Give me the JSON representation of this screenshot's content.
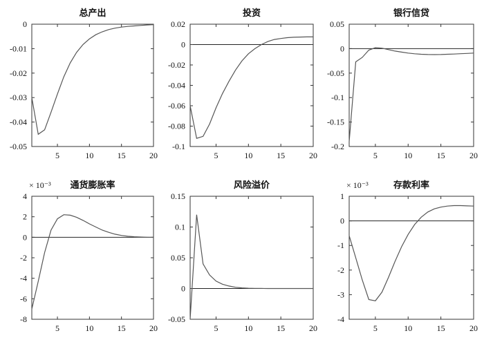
{
  "chart_data": [
    {
      "type": "line",
      "title": "总产出",
      "scale_label": "",
      "xlim": [
        1,
        20
      ],
      "ylim": [
        -0.05,
        0
      ],
      "x_ticks": [
        5,
        10,
        15,
        20
      ],
      "x_tick_labels": [
        "5",
        "10",
        "15",
        "20"
      ],
      "y_ticks": [
        -0.05,
        -0.04,
        -0.03,
        -0.02,
        -0.01,
        0
      ],
      "y_tick_labels": [
        "-0.05",
        "-0.04",
        "-0.03",
        "-0.02",
        "-0.01",
        "0"
      ],
      "zero_line": false,
      "x": [
        1,
        2,
        3,
        4,
        5,
        6,
        7,
        8,
        9,
        10,
        11,
        12,
        13,
        14,
        15,
        16,
        17,
        18,
        19,
        20
      ],
      "y": [
        -0.03,
        -0.045,
        -0.0432,
        -0.036,
        -0.0285,
        -0.0215,
        -0.0158,
        -0.0115,
        -0.0083,
        -0.006,
        -0.0043,
        -0.0031,
        -0.0022,
        -0.0016,
        -0.0012,
        -0.0009,
        -0.0007,
        -0.0005,
        -0.0003,
        -0.0002
      ]
    },
    {
      "type": "line",
      "title": "投资",
      "scale_label": "",
      "xlim": [
        1,
        20
      ],
      "ylim": [
        -0.1,
        0.02
      ],
      "x_ticks": [
        5,
        10,
        15,
        20
      ],
      "x_tick_labels": [
        "5",
        "10",
        "15",
        "20"
      ],
      "y_ticks": [
        -0.1,
        -0.08,
        -0.06,
        -0.04,
        -0.02,
        0,
        0.02
      ],
      "y_tick_labels": [
        "-0.1",
        "-0.08",
        "-0.06",
        "-0.04",
        "-0.02",
        "0",
        "0.02"
      ],
      "zero_line": true,
      "x": [
        1,
        2,
        3,
        4,
        5,
        6,
        7,
        8,
        9,
        10,
        11,
        12,
        13,
        14,
        15,
        16,
        17,
        18,
        19,
        20
      ],
      "y": [
        -0.06,
        -0.092,
        -0.09,
        -0.078,
        -0.062,
        -0.048,
        -0.036,
        -0.025,
        -0.016,
        -0.009,
        -0.004,
        0.0,
        0.003,
        0.005,
        0.006,
        0.0068,
        0.0072,
        0.0074,
        0.0075,
        0.0075
      ]
    },
    {
      "type": "line",
      "title": "银行信贷",
      "scale_label": "",
      "xlim": [
        1,
        20
      ],
      "ylim": [
        -0.2,
        0.05
      ],
      "x_ticks": [
        5,
        10,
        15,
        20
      ],
      "x_tick_labels": [
        "5",
        "10",
        "15",
        "20"
      ],
      "y_ticks": [
        -0.2,
        -0.15,
        -0.1,
        -0.05,
        0,
        0.05
      ],
      "y_tick_labels": [
        "-0.2",
        "-0.15",
        "-0.1",
        "-0.05",
        "0",
        "0.05"
      ],
      "zero_line": true,
      "x": [
        1,
        2,
        3,
        4,
        5,
        6,
        7,
        8,
        9,
        10,
        11,
        12,
        13,
        14,
        15,
        16,
        17,
        18,
        19,
        20
      ],
      "y": [
        -0.19,
        -0.027,
        -0.018,
        -0.003,
        0.002,
        0.001,
        -0.002,
        -0.005,
        -0.007,
        -0.009,
        -0.0105,
        -0.0115,
        -0.012,
        -0.0122,
        -0.012,
        -0.0115,
        -0.011,
        -0.0103,
        -0.0097,
        -0.009
      ]
    },
    {
      "type": "line",
      "title": "通货膨胀率",
      "scale_label": "× 10⁻³",
      "xlim": [
        1,
        20
      ],
      "ylim": [
        -8,
        4
      ],
      "x_ticks": [
        5,
        10,
        15,
        20
      ],
      "x_tick_labels": [
        "5",
        "10",
        "15",
        "20"
      ],
      "y_ticks": [
        -8,
        -6,
        -4,
        -2,
        0,
        2,
        4
      ],
      "y_tick_labels": [
        "-8",
        "-6",
        "-4",
        "-2",
        "0",
        "2",
        "4"
      ],
      "zero_line": true,
      "x": [
        1,
        2,
        3,
        4,
        5,
        6,
        7,
        8,
        9,
        10,
        11,
        12,
        13,
        14,
        15,
        16,
        17,
        18,
        19,
        20
      ],
      "y": [
        -7.0,
        -4.3,
        -1.5,
        0.7,
        1.8,
        2.2,
        2.15,
        1.95,
        1.65,
        1.3,
        1.0,
        0.7,
        0.48,
        0.3,
        0.18,
        0.1,
        0.05,
        0.02,
        0.0,
        -0.01
      ]
    },
    {
      "type": "line",
      "title": "风险溢价",
      "scale_label": "",
      "xlim": [
        1,
        20
      ],
      "ylim": [
        -0.05,
        0.15
      ],
      "x_ticks": [
        5,
        10,
        15,
        20
      ],
      "x_tick_labels": [
        "5",
        "10",
        "15",
        "20"
      ],
      "y_ticks": [
        -0.05,
        0,
        0.05,
        0.1,
        0.15
      ],
      "y_tick_labels": [
        "-0.05",
        "0",
        "0.05",
        "0.1",
        "0.15"
      ],
      "zero_line": true,
      "x": [
        1,
        2,
        3,
        4,
        5,
        6,
        7,
        8,
        9,
        10,
        11,
        12,
        13,
        14,
        15,
        16,
        17,
        18,
        19,
        20
      ],
      "y": [
        -0.05,
        0.12,
        0.04,
        0.022,
        0.012,
        0.007,
        0.004,
        0.002,
        0.001,
        0.0005,
        0.0002,
        0.0001,
        0,
        0,
        0,
        0,
        0,
        0,
        0,
        0
      ]
    },
    {
      "type": "line",
      "title": "存款利率",
      "scale_label": "× 10⁻³",
      "xlim": [
        1,
        20
      ],
      "ylim": [
        -4,
        1
      ],
      "x_ticks": [
        5,
        10,
        15,
        20
      ],
      "x_tick_labels": [
        "5",
        "10",
        "15",
        "20"
      ],
      "y_ticks": [
        -4,
        -3,
        -2,
        -1,
        0,
        1
      ],
      "y_tick_labels": [
        "-4",
        "-3",
        "-2",
        "-1",
        "0",
        "1"
      ],
      "zero_line": true,
      "x": [
        1,
        2,
        3,
        4,
        5,
        6,
        7,
        8,
        9,
        10,
        11,
        12,
        13,
        14,
        15,
        16,
        17,
        18,
        19,
        20
      ],
      "y": [
        -0.6,
        -1.5,
        -2.4,
        -3.2,
        -3.25,
        -2.9,
        -2.3,
        -1.65,
        -1.05,
        -0.55,
        -0.15,
        0.15,
        0.36,
        0.49,
        0.56,
        0.6,
        0.62,
        0.62,
        0.61,
        0.6
      ]
    }
  ]
}
